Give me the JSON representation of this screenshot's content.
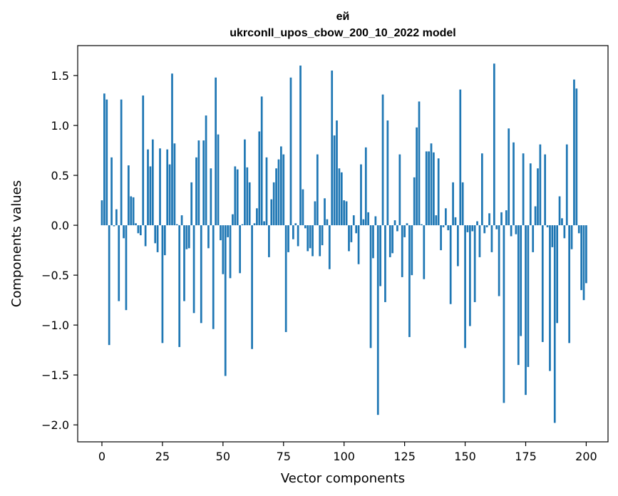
{
  "chart_data": {
    "type": "bar",
    "title": "ей",
    "subtitle": "ukrconll_upos_cbow_200_10_2022 model",
    "xlabel": "Vector components",
    "ylabel": "Components values",
    "xlim": [
      -10,
      209
    ],
    "ylim": [
      -2.17,
      1.8
    ],
    "xticks": [
      0,
      25,
      50,
      75,
      100,
      125,
      150,
      175,
      200
    ],
    "yticks": [
      -2.0,
      -1.5,
      -1.0,
      -0.5,
      0.0,
      0.5,
      1.0,
      1.5
    ],
    "ytick_labels": [
      "−2.0",
      "−1.5",
      "−1.0",
      "−0.5",
      "0.0",
      "0.5",
      "1.0",
      "1.5"
    ],
    "grid": false,
    "bar_color": "#1f77b4",
    "values": [
      0.25,
      1.32,
      1.26,
      -1.2,
      0.68,
      -0.01,
      0.16,
      -0.76,
      1.26,
      -0.13,
      -0.85,
      0.6,
      0.29,
      0.28,
      0.02,
      -0.08,
      -0.1,
      1.3,
      -0.21,
      0.76,
      0.59,
      0.86,
      -0.18,
      -0.27,
      0.77,
      -1.18,
      -0.3,
      0.76,
      0.61,
      1.52,
      0.82,
      0.01,
      -1.22,
      0.1,
      -0.76,
      -0.24,
      -0.23,
      0.43,
      -0.88,
      0.68,
      0.85,
      -0.98,
      0.85,
      1.1,
      -0.23,
      0.57,
      -1.04,
      1.48,
      0.91,
      -0.15,
      -0.49,
      -1.51,
      -0.12,
      -0.53,
      0.11,
      0.59,
      0.56,
      -0.48,
      0.01,
      0.86,
      0.58,
      0.43,
      -1.24,
      0.02,
      0.17,
      0.94,
      1.29,
      0.04,
      0.68,
      -0.32,
      0.26,
      0.43,
      0.57,
      0.66,
      0.79,
      0.71,
      -1.07,
      -0.27,
      1.48,
      -0.14,
      0.02,
      -0.21,
      1.6,
      0.36,
      -0.03,
      -0.26,
      -0.23,
      -0.31,
      0.24,
      0.71,
      -0.31,
      -0.2,
      0.27,
      0.06,
      -0.44,
      1.55,
      0.9,
      1.05,
      0.57,
      0.53,
      0.25,
      0.24,
      -0.26,
      -0.17,
      0.1,
      -0.08,
      -0.39,
      0.61,
      0.06,
      0.78,
      0.13,
      -1.23,
      -0.33,
      0.09,
      -1.9,
      -0.61,
      1.31,
      -0.77,
      1.05,
      -0.32,
      -0.28,
      0.05,
      -0.06,
      0.71,
      -0.52,
      -0.12,
      0.02,
      -1.12,
      -0.5,
      0.48,
      0.98,
      1.24,
      0.01,
      -0.54,
      0.74,
      0.74,
      0.82,
      0.73,
      0.1,
      0.67,
      -0.25,
      -0.02,
      0.17,
      -0.05,
      -0.79,
      0.43,
      0.08,
      -0.41,
      1.36,
      0.43,
      -1.23,
      -0.07,
      -1.01,
      -0.06,
      -0.77,
      0.04,
      -0.32,
      0.72,
      -0.08,
      -0.02,
      0.12,
      -0.27,
      1.62,
      -0.04,
      -0.71,
      0.13,
      -1.78,
      0.15,
      0.97,
      -0.11,
      0.83,
      -0.09,
      -1.4,
      -1.11,
      0.72,
      -1.7,
      -1.42,
      0.62,
      -0.27,
      0.19,
      0.57,
      0.81,
      -1.17,
      0.71,
      -0.02,
      -1.46,
      -0.22,
      -1.98,
      -0.98,
      0.29,
      0.07,
      -0.13,
      0.81,
      -1.18,
      -0.24,
      1.46,
      1.37,
      -0.08,
      -0.65,
      -0.75,
      -0.58
    ]
  }
}
